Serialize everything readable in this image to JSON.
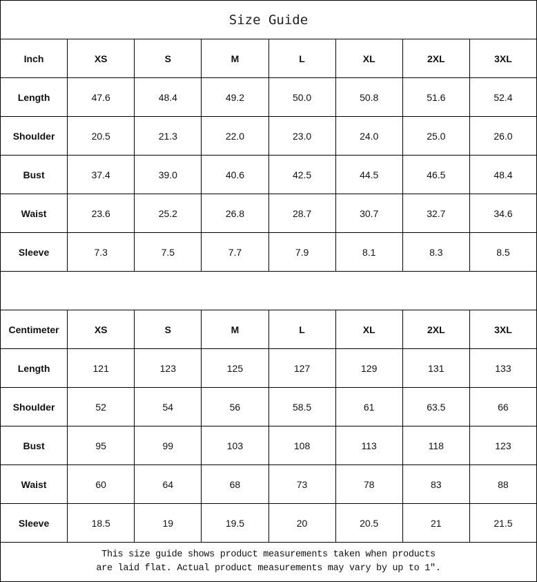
{
  "title": "Size Guide",
  "tables": [
    {
      "unit": "Inch",
      "sizes": [
        "XS",
        "S",
        "M",
        "L",
        "XL",
        "2XL",
        "3XL"
      ],
      "rows": [
        {
          "label": "Length",
          "values": [
            "47.6",
            "48.4",
            "49.2",
            "50.0",
            "50.8",
            "51.6",
            "52.4"
          ]
        },
        {
          "label": "Shoulder",
          "values": [
            "20.5",
            "21.3",
            "22.0",
            "23.0",
            "24.0",
            "25.0",
            "26.0"
          ]
        },
        {
          "label": "Bust",
          "values": [
            "37.4",
            "39.0",
            "40.6",
            "42.5",
            "44.5",
            "46.5",
            "48.4"
          ]
        },
        {
          "label": "Waist",
          "values": [
            "23.6",
            "25.2",
            "26.8",
            "28.7",
            "30.7",
            "32.7",
            "34.6"
          ]
        },
        {
          "label": "Sleeve",
          "values": [
            "7.3",
            "7.5",
            "7.7",
            "7.9",
            "8.1",
            "8.3",
            "8.5"
          ]
        }
      ]
    },
    {
      "unit": "Centimeter",
      "sizes": [
        "XS",
        "S",
        "M",
        "L",
        "XL",
        "2XL",
        "3XL"
      ],
      "rows": [
        {
          "label": "Length",
          "values": [
            "121",
            "123",
            "125",
            "127",
            "129",
            "131",
            "133"
          ]
        },
        {
          "label": "Shoulder",
          "values": [
            "52",
            "54",
            "56",
            "58.5",
            "61",
            "63.5",
            "66"
          ]
        },
        {
          "label": "Bust",
          "values": [
            "95",
            "99",
            "103",
            "108",
            "113",
            "118",
            "123"
          ]
        },
        {
          "label": "Waist",
          "values": [
            "60",
            "64",
            "68",
            "73",
            "78",
            "83",
            "88"
          ]
        },
        {
          "label": "Sleeve",
          "values": [
            "18.5",
            "19",
            "19.5",
            "20",
            "20.5",
            "21",
            "21.5"
          ]
        }
      ]
    }
  ],
  "note": {
    "line1": "This size guide shows product measurements taken when products",
    "line2": "are laid flat. Actual product measurements may vary by up to 1″."
  }
}
